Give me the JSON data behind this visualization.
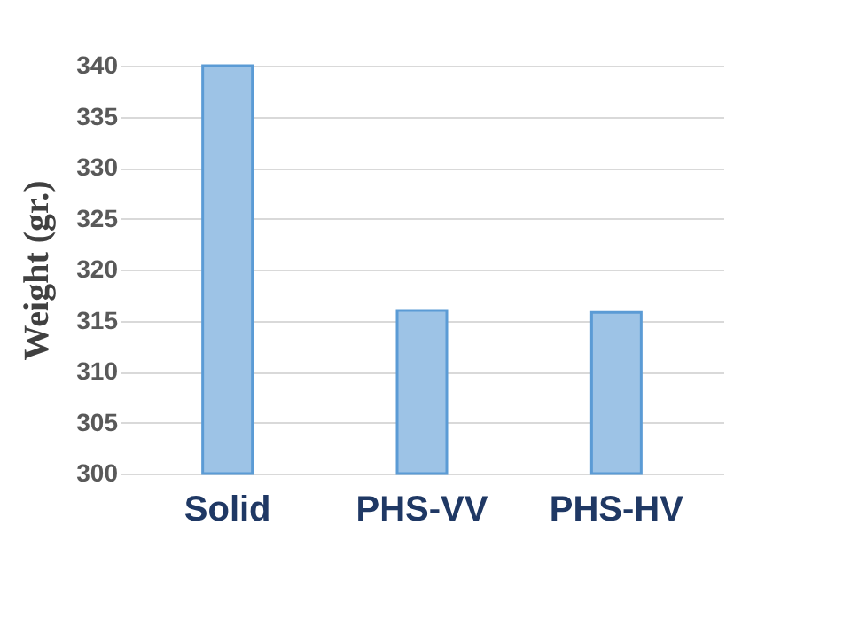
{
  "chart_data": {
    "type": "bar",
    "ylabel": "Weight (gr.)",
    "categories": [
      "Solid",
      "PHS-VV",
      "PHS-HV"
    ],
    "values": [
      340,
      316,
      315.8
    ],
    "color": "#9dc3e6",
    "ylim": [
      300,
      340
    ],
    "yticks": [
      300,
      305,
      310,
      315,
      320,
      325,
      330,
      335,
      340
    ],
    "grid": "y"
  }
}
